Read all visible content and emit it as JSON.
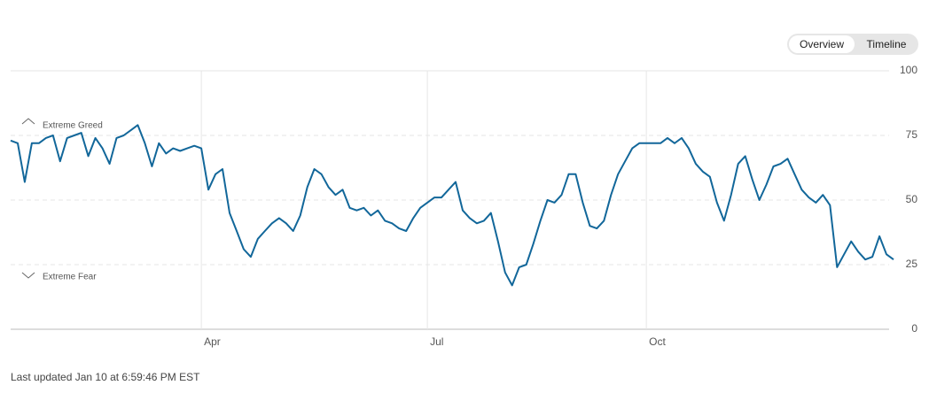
{
  "tabs": [
    "Overview",
    "Timeline"
  ],
  "footer": "Last updated Jan 10 at 6:59:46 PM EST",
  "chart_data": {
    "type": "line",
    "annotations": [
      "Extreme Greed",
      "Extreme Fear"
    ],
    "categories": [
      null,
      null,
      null,
      null,
      null,
      null,
      null,
      null,
      null,
      null,
      null,
      null,
      null,
      null,
      null,
      null,
      null,
      null,
      null,
      null,
      null,
      null,
      null,
      null,
      null,
      null,
      null,
      "Apr",
      null,
      null,
      null,
      null,
      null,
      null,
      null,
      null,
      null,
      null,
      null,
      null,
      null,
      null,
      null,
      null,
      null,
      null,
      null,
      null,
      null,
      null,
      null,
      null,
      null,
      null,
      null,
      null,
      null,
      null,
      null,
      "Jul",
      null,
      null,
      null,
      null,
      null,
      null,
      null,
      null,
      null,
      null,
      null,
      null,
      null,
      null,
      null,
      null,
      null,
      null,
      null,
      null,
      null,
      null,
      null,
      null,
      null,
      null,
      null,
      null,
      null,
      null,
      "Oct",
      null,
      null,
      null,
      null,
      null,
      null,
      null,
      null,
      null,
      null,
      null,
      null,
      null,
      null,
      null,
      null,
      null,
      null,
      null,
      null,
      null,
      null,
      null,
      null,
      null,
      null,
      null,
      null,
      null,
      null,
      null,
      null,
      null,
      null,
      null
    ],
    "values": [
      73,
      72,
      57,
      72,
      72,
      74,
      75,
      65,
      74,
      75,
      76,
      67,
      74,
      70,
      64,
      74,
      75,
      77,
      79,
      72,
      63,
      72,
      68,
      70,
      69,
      70,
      71,
      70,
      54,
      60,
      62,
      45,
      38,
      31,
      28,
      35,
      38,
      41,
      43,
      41,
      38,
      44,
      55,
      62,
      60,
      55,
      52,
      54,
      47,
      46,
      47,
      44,
      46,
      42,
      41,
      39,
      38,
      43,
      47,
      49,
      51,
      51,
      54,
      57,
      46,
      43,
      41,
      42,
      45,
      34,
      22,
      17,
      24,
      25,
      33,
      42,
      50,
      49,
      52,
      60,
      60,
      49,
      40,
      39,
      42,
      52,
      60,
      65,
      70,
      72,
      72,
      72,
      72,
      74,
      72,
      74,
      70,
      64,
      61,
      59,
      49,
      42,
      52,
      64,
      67,
      58,
      50,
      56,
      63,
      64,
      66,
      60,
      54,
      51,
      49,
      52,
      48,
      24,
      29,
      34,
      30,
      27,
      28,
      36,
      29,
      27
    ],
    "color": "#12679a",
    "ylim": [
      0,
      100
    ],
    "yticks": [
      0,
      25,
      50,
      75,
      100
    ],
    "grid": true
  }
}
